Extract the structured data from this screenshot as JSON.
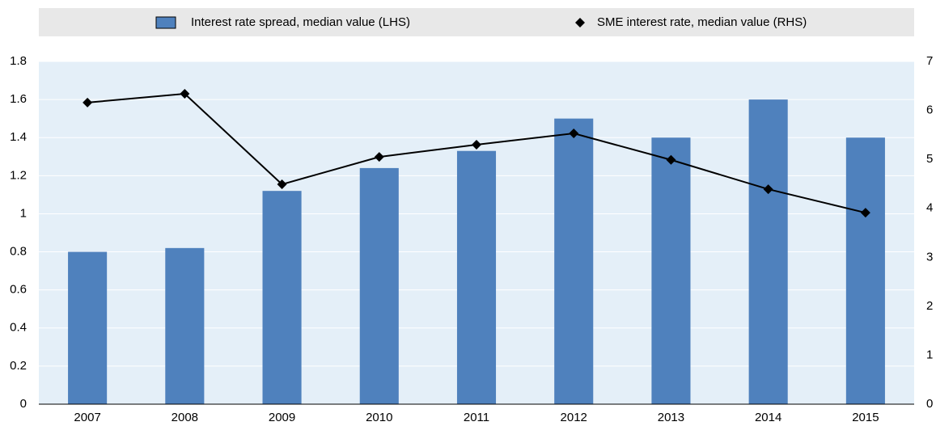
{
  "chart_data": {
    "type": "bar_line",
    "categories": [
      "2007",
      "2008",
      "2009",
      "2010",
      "2011",
      "2012",
      "2013",
      "2014",
      "2015"
    ],
    "series": [
      {
        "name": "Interest rate spread, median value (LHS)",
        "type": "bar",
        "color": "#4f81bd",
        "axis": "y",
        "values": [
          0.8,
          0.82,
          1.12,
          1.24,
          1.33,
          1.5,
          1.4,
          1.6,
          1.4
        ]
      },
      {
        "name": "SME interest rate, median value (RHS)",
        "type": "line",
        "color": "#000000",
        "axis": "y2",
        "values": [
          6.16,
          6.34,
          4.49,
          5.05,
          5.3,
          5.53,
          4.99,
          4.39,
          3.91
        ]
      }
    ],
    "ylim": [
      0,
      1.8
    ],
    "yticks": [
      0,
      0.2,
      0.4,
      0.6,
      0.8,
      1,
      1.2,
      1.4,
      1.6,
      1.8
    ],
    "y2lim": [
      0,
      7
    ],
    "y2ticks": [
      0,
      1,
      2,
      3,
      4,
      5,
      6,
      7
    ],
    "grid": true,
    "legend": "top"
  }
}
